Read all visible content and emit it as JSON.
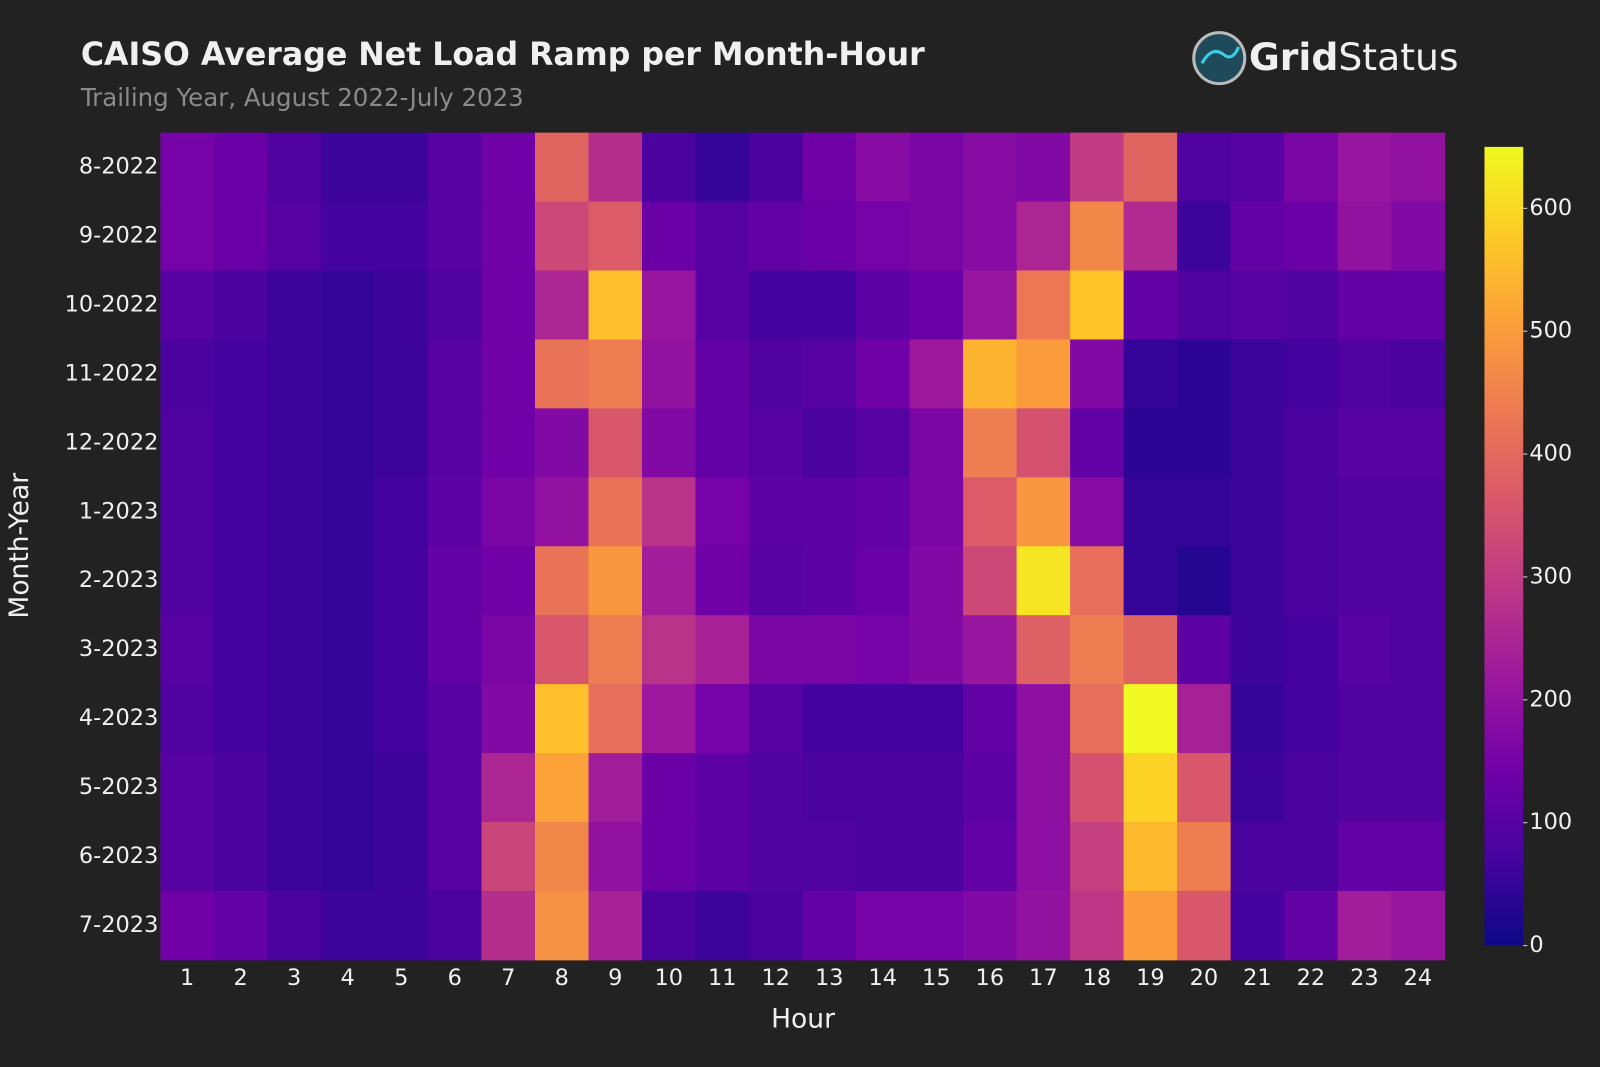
{
  "chart_data": {
    "type": "heatmap",
    "title": "CAISO Average Net Load Ramp per Month-Hour",
    "subtitle": "Trailing Year, August 2022-July 2023",
    "logo": {
      "bold": "Grid",
      "light": "Status"
    },
    "x_label": "Hour",
    "y_label": "Month-Year",
    "x": [
      1,
      2,
      3,
      4,
      5,
      6,
      7,
      8,
      9,
      10,
      11,
      12,
      13,
      14,
      15,
      16,
      17,
      18,
      19,
      20,
      21,
      22,
      23,
      24
    ],
    "y": [
      "8-2022",
      "9-2022",
      "10-2022",
      "11-2022",
      "12-2022",
      "1-2023",
      "2-2023",
      "3-2023",
      "4-2023",
      "5-2023",
      "6-2023",
      "7-2023"
    ],
    "z": [
      [
        150,
        130,
        90,
        60,
        60,
        100,
        140,
        390,
        270,
        80,
        50,
        80,
        140,
        180,
        160,
        180,
        170,
        300,
        390,
        90,
        100,
        160,
        210,
        200
      ],
      [
        150,
        130,
        100,
        70,
        70,
        100,
        140,
        330,
        370,
        130,
        100,
        120,
        130,
        150,
        160,
        180,
        250,
        460,
        260,
        60,
        120,
        130,
        200,
        170
      ],
      [
        100,
        80,
        60,
        50,
        60,
        90,
        140,
        250,
        560,
        210,
        100,
        70,
        70,
        110,
        130,
        210,
        430,
        570,
        120,
        90,
        100,
        90,
        120,
        120
      ],
      [
        80,
        70,
        60,
        50,
        60,
        100,
        140,
        420,
        440,
        200,
        120,
        90,
        100,
        140,
        220,
        540,
        500,
        170,
        50,
        40,
        60,
        70,
        90,
        80
      ],
      [
        90,
        70,
        60,
        50,
        60,
        100,
        140,
        170,
        360,
        170,
        120,
        100,
        80,
        100,
        160,
        440,
        350,
        120,
        40,
        40,
        60,
        80,
        100,
        100
      ],
      [
        90,
        70,
        60,
        50,
        70,
        110,
        160,
        200,
        420,
        280,
        150,
        110,
        110,
        120,
        160,
        370,
        490,
        180,
        50,
        50,
        60,
        80,
        90,
        90
      ],
      [
        90,
        70,
        60,
        50,
        70,
        120,
        140,
        420,
        490,
        230,
        140,
        100,
        110,
        130,
        170,
        330,
        620,
        410,
        50,
        30,
        60,
        80,
        90,
        90
      ],
      [
        100,
        70,
        60,
        50,
        70,
        120,
        160,
        360,
        440,
        280,
        240,
        160,
        160,
        150,
        170,
        210,
        380,
        440,
        390,
        110,
        60,
        70,
        100,
        90
      ],
      [
        90,
        70,
        60,
        50,
        70,
        100,
        170,
        560,
        410,
        220,
        150,
        100,
        70,
        70,
        70,
        120,
        190,
        410,
        650,
        240,
        50,
        70,
        90,
        90
      ],
      [
        100,
        80,
        60,
        50,
        60,
        100,
        250,
        510,
        230,
        130,
        110,
        90,
        80,
        80,
        80,
        110,
        190,
        350,
        590,
        360,
        60,
        80,
        90,
        90
      ],
      [
        100,
        80,
        60,
        50,
        60,
        100,
        320,
        460,
        200,
        130,
        110,
        90,
        90,
        80,
        80,
        120,
        190,
        310,
        550,
        440,
        80,
        80,
        120,
        120
      ],
      [
        140,
        120,
        80,
        60,
        60,
        80,
        270,
        480,
        240,
        80,
        60,
        80,
        120,
        150,
        150,
        170,
        200,
        290,
        500,
        360,
        70,
        120,
        230,
        210
      ]
    ],
    "zlim": [
      0,
      650
    ],
    "zticks": [
      0,
      100,
      200,
      300,
      400,
      500,
      600
    ],
    "colorscale": [
      "#0d0887",
      "#46039f",
      "#7201a8",
      "#9c179e",
      "#bd3786",
      "#d8576b",
      "#ed7953",
      "#fb9f3a",
      "#fdca26",
      "#f0f921"
    ]
  }
}
